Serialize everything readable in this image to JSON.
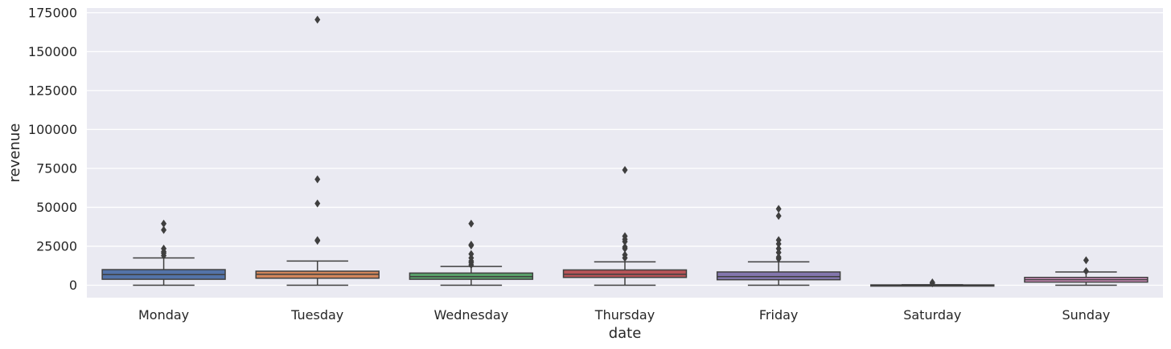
{
  "chart_data": {
    "type": "box",
    "xlabel": "date",
    "ylabel": "revenue",
    "ylim": [
      -8000,
      178000
    ],
    "yticks": [
      0,
      25000,
      50000,
      75000,
      100000,
      125000,
      150000,
      175000
    ],
    "ytick_labels": [
      "0",
      "25000",
      "50000",
      "75000",
      "100000",
      "125000",
      "150000",
      "175000"
    ],
    "background": "#eaeaf2",
    "grid": true,
    "categories": [
      "Monday",
      "Tuesday",
      "Wednesday",
      "Thursday",
      "Friday",
      "Saturday",
      "Sunday"
    ],
    "boxes": [
      {
        "category": "Monday",
        "color": "#4c72b0",
        "whisker_low": 0,
        "q1": 3800,
        "median": 6800,
        "q3": 10000,
        "whisker_high": 17500,
        "outliers": [
          19000,
          20500,
          21500,
          23500,
          35500,
          39500
        ]
      },
      {
        "category": "Tuesday",
        "color": "#dd8452",
        "whisker_low": 0,
        "q1": 4500,
        "median": 7000,
        "q3": 9000,
        "whisker_high": 15500,
        "outliers": [
          28500,
          29000,
          52500,
          68000,
          170500
        ]
      },
      {
        "category": "Wednesday",
        "color": "#55a868",
        "whisker_low": 0,
        "q1": 3800,
        "median": 5500,
        "q3": 7800,
        "whisker_high": 12000,
        "outliers": [
          13000,
          14500,
          15500,
          17500,
          20000,
          25500,
          26000,
          39500
        ]
      },
      {
        "category": "Thursday",
        "color": "#c44e52",
        "whisker_low": 0,
        "q1": 5000,
        "median": 7000,
        "q3": 9800,
        "whisker_high": 15000,
        "outliers": [
          17500,
          19500,
          23500,
          24500,
          28000,
          29500,
          31500,
          74000
        ]
      },
      {
        "category": "Friday",
        "color": "#8172b3",
        "whisker_low": 0,
        "q1": 3500,
        "median": 5500,
        "q3": 8500,
        "whisker_high": 15000,
        "outliers": [
          17000,
          18000,
          21000,
          23500,
          26500,
          29000,
          44500,
          49000
        ]
      },
      {
        "category": "Saturday",
        "color": "#937860",
        "whisker_low": 0,
        "q1": 0,
        "median": 0,
        "q3": 200,
        "whisker_high": 300,
        "outliers": [
          1200,
          1800
        ]
      },
      {
        "category": "Sunday",
        "color": "#da8bc3",
        "whisker_low": 0,
        "q1": 2000,
        "median": 3500,
        "q3": 5000,
        "whisker_high": 8500,
        "outliers": [
          9000,
          16000
        ]
      }
    ]
  }
}
